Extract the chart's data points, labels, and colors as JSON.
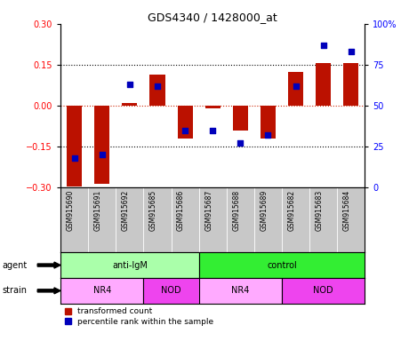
{
  "title": "GDS4340 / 1428000_at",
  "samples": [
    "GSM915690",
    "GSM915691",
    "GSM915692",
    "GSM915685",
    "GSM915686",
    "GSM915687",
    "GSM915688",
    "GSM915689",
    "GSM915682",
    "GSM915683",
    "GSM915684"
  ],
  "red_values": [
    -0.295,
    -0.285,
    0.01,
    0.115,
    -0.12,
    -0.01,
    -0.09,
    -0.12,
    0.125,
    0.158,
    0.155
  ],
  "blue_values": [
    18,
    20,
    63,
    62,
    35,
    35,
    27,
    32,
    62,
    87,
    83
  ],
  "ylim_left": [
    -0.3,
    0.3
  ],
  "ylim_right": [
    0,
    100
  ],
  "yticks_left": [
    -0.3,
    -0.15,
    0,
    0.15,
    0.3
  ],
  "yticks_right": [
    0,
    25,
    50,
    75,
    100
  ],
  "ytick_labels_right": [
    "0",
    "25",
    "50",
    "75",
    "100%"
  ],
  "agent_groups": [
    {
      "label": "anti-IgM",
      "start": 0,
      "end": 5,
      "color": "#AAFFAA"
    },
    {
      "label": "control",
      "start": 5,
      "end": 11,
      "color": "#33EE33"
    }
  ],
  "strain_groups": [
    {
      "label": "NR4",
      "start": 0,
      "end": 3,
      "color": "#FFAAFF"
    },
    {
      "label": "NOD",
      "start": 3,
      "end": 5,
      "color": "#EE44EE"
    },
    {
      "label": "NR4",
      "start": 5,
      "end": 8,
      "color": "#FFAAFF"
    },
    {
      "label": "NOD",
      "start": 8,
      "end": 11,
      "color": "#EE44EE"
    }
  ],
  "red_color": "#BB1100",
  "blue_color": "#0000BB",
  "zero_line_color": "#CC2200",
  "bg_color": "#FFFFFF",
  "tick_area_color": "#C8C8C8",
  "agent_label": "agent",
  "strain_label": "strain",
  "legend_red": "transformed count",
  "legend_blue": "percentile rank within the sample"
}
